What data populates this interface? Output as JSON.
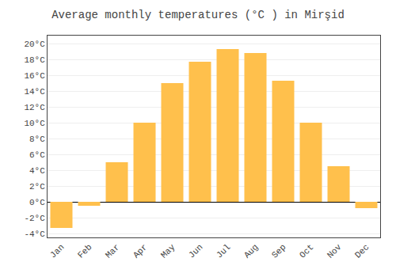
{
  "chart_data": {
    "type": "bar",
    "title": "Average monthly temperatures (°C ) in Mirşid",
    "categories": [
      "Jan",
      "Feb",
      "Mar",
      "Apr",
      "May",
      "Jun",
      "Jul",
      "Aug",
      "Sep",
      "Oct",
      "Nov",
      "Dec"
    ],
    "values": [
      -3.3,
      -0.5,
      5.0,
      10.0,
      15.0,
      17.7,
      19.3,
      18.8,
      15.3,
      10.0,
      4.5,
      -0.8
    ],
    "color": "#FFC04C",
    "ylim": [
      -4.5,
      21
    ],
    "yticks": [
      {
        "value": -4,
        "label": "-4°C"
      },
      {
        "value": -2,
        "label": "-2°C"
      },
      {
        "value": 0,
        "label": "0°C"
      },
      {
        "value": 2,
        "label": "2°C"
      },
      {
        "value": 4,
        "label": "4°C"
      },
      {
        "value": 6,
        "label": "6°C"
      },
      {
        "value": 8,
        "label": "8°C"
      },
      {
        "value": 10,
        "label": "10°C"
      },
      {
        "value": 12,
        "label": "12°C"
      },
      {
        "value": 14,
        "label": "14°C"
      },
      {
        "value": 16,
        "label": "16°C"
      },
      {
        "value": 18,
        "label": "18°C"
      },
      {
        "value": 20,
        "label": "20°C"
      }
    ],
    "grid": true
  }
}
